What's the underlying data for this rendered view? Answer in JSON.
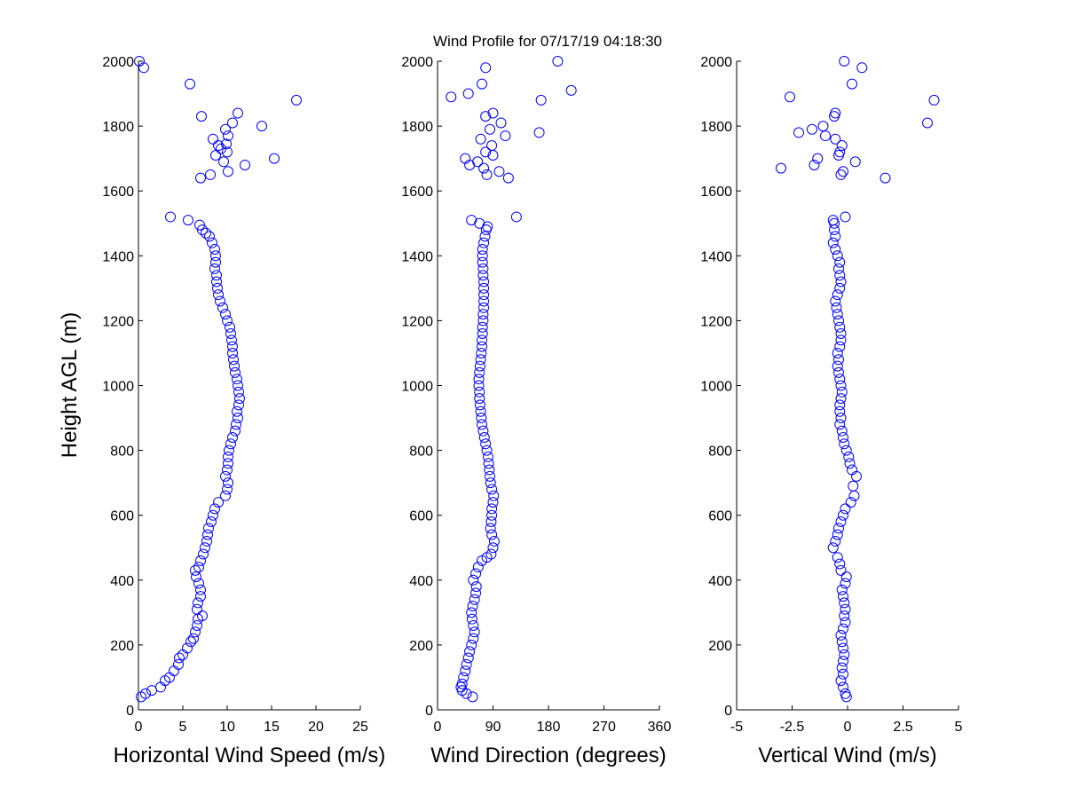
{
  "title": "Wind Profile for  07/17/19 04:18:30",
  "ylabel": "Height AGL (m)",
  "marker_color": "#0000ff",
  "chart_data": [
    {
      "type": "scatter",
      "title": "Wind Profile for  07/17/19 04:18:30",
      "xlabel": "Horizontal Wind Speed (m/s)",
      "ylabel": "Height AGL (m)",
      "xlim": [
        0,
        25
      ],
      "ylim": [
        0,
        2000
      ],
      "xticks": [
        "0",
        "5",
        "10",
        "15",
        "20",
        "25"
      ],
      "yticks": [
        "0",
        "200",
        "400",
        "600",
        "800",
        "1000",
        "1200",
        "1400",
        "1600",
        "1800",
        "2000"
      ],
      "grid": false,
      "points": [
        [
          0.3,
          40
        ],
        [
          0.8,
          50
        ],
        [
          1.5,
          60
        ],
        [
          2.5,
          70
        ],
        [
          3.0,
          90
        ],
        [
          3.5,
          100
        ],
        [
          4.0,
          120
        ],
        [
          4.5,
          140
        ],
        [
          4.6,
          160
        ],
        [
          5.0,
          170
        ],
        [
          5.5,
          190
        ],
        [
          5.9,
          210
        ],
        [
          6.2,
          220
        ],
        [
          6.4,
          240
        ],
        [
          6.6,
          260
        ],
        [
          6.7,
          280
        ],
        [
          7.2,
          290
        ],
        [
          6.6,
          310
        ],
        [
          6.7,
          330
        ],
        [
          7.0,
          350
        ],
        [
          7.0,
          370
        ],
        [
          6.8,
          390
        ],
        [
          6.5,
          410
        ],
        [
          6.4,
          430
        ],
        [
          6.8,
          440
        ],
        [
          7.0,
          460
        ],
        [
          7.3,
          480
        ],
        [
          7.5,
          500
        ],
        [
          7.7,
          520
        ],
        [
          7.8,
          540
        ],
        [
          7.9,
          560
        ],
        [
          8.2,
          580
        ],
        [
          8.4,
          600
        ],
        [
          8.6,
          620
        ],
        [
          9.0,
          640
        ],
        [
          9.8,
          660
        ],
        [
          10.0,
          680
        ],
        [
          10.1,
          700
        ],
        [
          9.8,
          720
        ],
        [
          10.0,
          740
        ],
        [
          10.1,
          760
        ],
        [
          10.1,
          780
        ],
        [
          10.2,
          800
        ],
        [
          10.4,
          820
        ],
        [
          10.6,
          840
        ],
        [
          10.9,
          860
        ],
        [
          11.0,
          880
        ],
        [
          11.2,
          900
        ],
        [
          11.1,
          920
        ],
        [
          11.3,
          940
        ],
        [
          11.4,
          960
        ],
        [
          11.3,
          980
        ],
        [
          11.2,
          1000
        ],
        [
          11.1,
          1020
        ],
        [
          10.9,
          1040
        ],
        [
          10.8,
          1060
        ],
        [
          10.7,
          1080
        ],
        [
          10.6,
          1100
        ],
        [
          10.6,
          1120
        ],
        [
          10.5,
          1140
        ],
        [
          10.4,
          1160
        ],
        [
          10.3,
          1180
        ],
        [
          10.0,
          1200
        ],
        [
          9.8,
          1220
        ],
        [
          9.5,
          1240
        ],
        [
          9.2,
          1260
        ],
        [
          9.0,
          1280
        ],
        [
          8.9,
          1300
        ],
        [
          8.8,
          1320
        ],
        [
          8.8,
          1340
        ],
        [
          8.6,
          1360
        ],
        [
          8.7,
          1380
        ],
        [
          8.7,
          1400
        ],
        [
          8.6,
          1420
        ],
        [
          8.3,
          1440
        ],
        [
          8.0,
          1460
        ],
        [
          7.6,
          1470
        ],
        [
          7.2,
          1480
        ],
        [
          6.9,
          1495
        ],
        [
          5.6,
          1510
        ],
        [
          3.6,
          1520
        ],
        [
          8.1,
          1650
        ],
        [
          7.0,
          1640
        ],
        [
          10.1,
          1660
        ],
        [
          12.0,
          1680
        ],
        [
          9.6,
          1690
        ],
        [
          15.3,
          1700
        ],
        [
          8.7,
          1710
        ],
        [
          10.0,
          1720
        ],
        [
          9.3,
          1730
        ],
        [
          9.0,
          1740
        ],
        [
          9.9,
          1745
        ],
        [
          8.4,
          1760
        ],
        [
          10.1,
          1770
        ],
        [
          9.8,
          1790
        ],
        [
          13.9,
          1800
        ],
        [
          10.6,
          1810
        ],
        [
          7.1,
          1830
        ],
        [
          11.2,
          1840
        ],
        [
          17.8,
          1880
        ],
        [
          5.8,
          1930
        ],
        [
          0.6,
          1980
        ],
        [
          0.1,
          2000
        ]
      ]
    },
    {
      "type": "scatter",
      "xlabel": "Wind Direction (degrees)",
      "xlim": [
        0,
        360
      ],
      "ylim": [
        0,
        2000
      ],
      "xticks": [
        "0",
        "90",
        "180",
        "270",
        "360"
      ],
      "yticks": [
        "0",
        "200",
        "400",
        "600",
        "800",
        "1000",
        "1200",
        "1400",
        "1600",
        "1800",
        "2000"
      ],
      "grid": false,
      "points": [
        [
          57,
          40
        ],
        [
          47,
          50
        ],
        [
          40,
          60
        ],
        [
          38,
          70
        ],
        [
          40,
          80
        ],
        [
          42,
          100
        ],
        [
          45,
          120
        ],
        [
          47,
          140
        ],
        [
          50,
          160
        ],
        [
          52,
          180
        ],
        [
          55,
          200
        ],
        [
          58,
          220
        ],
        [
          60,
          240
        ],
        [
          58,
          260
        ],
        [
          56,
          280
        ],
        [
          55,
          300
        ],
        [
          57,
          320
        ],
        [
          60,
          340
        ],
        [
          62,
          360
        ],
        [
          63,
          380
        ],
        [
          58,
          400
        ],
        [
          62,
          420
        ],
        [
          66,
          440
        ],
        [
          72,
          460
        ],
        [
          80,
          470
        ],
        [
          87,
          480
        ],
        [
          90,
          500
        ],
        [
          92,
          520
        ],
        [
          88,
          540
        ],
        [
          86,
          560
        ],
        [
          87,
          580
        ],
        [
          88,
          600
        ],
        [
          88,
          620
        ],
        [
          90,
          640
        ],
        [
          91,
          660
        ],
        [
          88,
          680
        ],
        [
          86,
          700
        ],
        [
          85,
          720
        ],
        [
          84,
          740
        ],
        [
          83,
          760
        ],
        [
          82,
          780
        ],
        [
          80,
          800
        ],
        [
          78,
          820
        ],
        [
          76,
          840
        ],
        [
          74,
          860
        ],
        [
          72,
          880
        ],
        [
          71,
          900
        ],
        [
          70,
          920
        ],
        [
          69,
          940
        ],
        [
          68,
          960
        ],
        [
          68,
          980
        ],
        [
          67,
          1000
        ],
        [
          67,
          1020
        ],
        [
          68,
          1040
        ],
        [
          69,
          1060
        ],
        [
          70,
          1080
        ],
        [
          71,
          1100
        ],
        [
          72,
          1120
        ],
        [
          72,
          1140
        ],
        [
          73,
          1160
        ],
        [
          73,
          1180
        ],
        [
          74,
          1200
        ],
        [
          74,
          1220
        ],
        [
          75,
          1240
        ],
        [
          75,
          1260
        ],
        [
          75,
          1280
        ],
        [
          75,
          1300
        ],
        [
          75,
          1320
        ],
        [
          74,
          1340
        ],
        [
          74,
          1360
        ],
        [
          73,
          1380
        ],
        [
          73,
          1400
        ],
        [
          73,
          1420
        ],
        [
          75,
          1440
        ],
        [
          77,
          1460
        ],
        [
          79,
          1480
        ],
        [
          81,
          1490
        ],
        [
          68,
          1500
        ],
        [
          55,
          1510
        ],
        [
          128,
          1520
        ],
        [
          115,
          1640
        ],
        [
          80,
          1650
        ],
        [
          100,
          1660
        ],
        [
          75,
          1670
        ],
        [
          52,
          1680
        ],
        [
          65,
          1690
        ],
        [
          45,
          1700
        ],
        [
          90,
          1710
        ],
        [
          78,
          1720
        ],
        [
          88,
          1740
        ],
        [
          70,
          1760
        ],
        [
          110,
          1770
        ],
        [
          165,
          1780
        ],
        [
          85,
          1790
        ],
        [
          103,
          1810
        ],
        [
          78,
          1830
        ],
        [
          90,
          1840
        ],
        [
          168,
          1880
        ],
        [
          22,
          1890
        ],
        [
          50,
          1900
        ],
        [
          217,
          1910
        ],
        [
          72,
          1930
        ],
        [
          78,
          1980
        ],
        [
          195,
          2000
        ]
      ]
    },
    {
      "type": "scatter",
      "xlabel": "Vertical Wind (m/s)",
      "xlim": [
        -5,
        5
      ],
      "ylim": [
        0,
        2000
      ],
      "xticks": [
        "-5",
        "-2.5",
        "0",
        "2.5",
        "5"
      ],
      "yticks": [
        "0",
        "200",
        "400",
        "600",
        "800",
        "1000",
        "1200",
        "1400",
        "1600",
        "1800",
        "2000"
      ],
      "grid": false,
      "points": [
        [
          -0.05,
          40
        ],
        [
          -0.1,
          50
        ],
        [
          -0.2,
          70
        ],
        [
          -0.3,
          90
        ],
        [
          -0.2,
          110
        ],
        [
          -0.25,
          130
        ],
        [
          -0.2,
          150
        ],
        [
          -0.15,
          170
        ],
        [
          -0.2,
          190
        ],
        [
          -0.25,
          210
        ],
        [
          -0.3,
          230
        ],
        [
          -0.2,
          250
        ],
        [
          -0.1,
          270
        ],
        [
          -0.15,
          290
        ],
        [
          -0.1,
          310
        ],
        [
          -0.15,
          330
        ],
        [
          -0.2,
          350
        ],
        [
          -0.25,
          370
        ],
        [
          -0.1,
          390
        ],
        [
          -0.05,
          410
        ],
        [
          -0.3,
          430
        ],
        [
          -0.35,
          450
        ],
        [
          -0.45,
          470
        ],
        [
          -0.65,
          500
        ],
        [
          -0.55,
          520
        ],
        [
          -0.45,
          540
        ],
        [
          -0.4,
          560
        ],
        [
          -0.3,
          580
        ],
        [
          -0.2,
          600
        ],
        [
          -0.1,
          620
        ],
        [
          0.15,
          640
        ],
        [
          0.3,
          660
        ],
        [
          0.25,
          690
        ],
        [
          0.4,
          720
        ],
        [
          0.2,
          740
        ],
        [
          0.1,
          760
        ],
        [
          0.05,
          780
        ],
        [
          -0.05,
          800
        ],
        [
          -0.15,
          820
        ],
        [
          -0.2,
          840
        ],
        [
          -0.25,
          860
        ],
        [
          -0.35,
          880
        ],
        [
          -0.3,
          900
        ],
        [
          -0.35,
          920
        ],
        [
          -0.35,
          940
        ],
        [
          -0.3,
          960
        ],
        [
          -0.25,
          980
        ],
        [
          -0.3,
          1000
        ],
        [
          -0.35,
          1020
        ],
        [
          -0.4,
          1040
        ],
        [
          -0.45,
          1060
        ],
        [
          -0.4,
          1080
        ],
        [
          -0.45,
          1100
        ],
        [
          -0.35,
          1120
        ],
        [
          -0.3,
          1140
        ],
        [
          -0.3,
          1160
        ],
        [
          -0.35,
          1180
        ],
        [
          -0.4,
          1200
        ],
        [
          -0.45,
          1220
        ],
        [
          -0.5,
          1240
        ],
        [
          -0.55,
          1260
        ],
        [
          -0.45,
          1280
        ],
        [
          -0.35,
          1300
        ],
        [
          -0.3,
          1320
        ],
        [
          -0.35,
          1340
        ],
        [
          -0.4,
          1360
        ],
        [
          -0.35,
          1380
        ],
        [
          -0.45,
          1400
        ],
        [
          -0.55,
          1420
        ],
        [
          -0.65,
          1440
        ],
        [
          -0.55,
          1460
        ],
        [
          -0.6,
          1480
        ],
        [
          -0.6,
          1500
        ],
        [
          -0.65,
          1510
        ],
        [
          -0.1,
          1520
        ],
        [
          1.7,
          1640
        ],
        [
          -0.3,
          1650
        ],
        [
          -0.2,
          1660
        ],
        [
          -3.0,
          1670
        ],
        [
          -1.5,
          1680
        ],
        [
          0.35,
          1690
        ],
        [
          -1.35,
          1700
        ],
        [
          -0.4,
          1710
        ],
        [
          -0.35,
          1720
        ],
        [
          -0.25,
          1740
        ],
        [
          -0.55,
          1760
        ],
        [
          -1.0,
          1770
        ],
        [
          -2.2,
          1780
        ],
        [
          -1.6,
          1790
        ],
        [
          -1.1,
          1800
        ],
        [
          3.6,
          1810
        ],
        [
          -0.6,
          1830
        ],
        [
          -0.55,
          1840
        ],
        [
          3.9,
          1880
        ],
        [
          -2.6,
          1890
        ],
        [
          0.2,
          1930
        ],
        [
          0.65,
          1980
        ],
        [
          -0.15,
          2000
        ]
      ]
    }
  ]
}
